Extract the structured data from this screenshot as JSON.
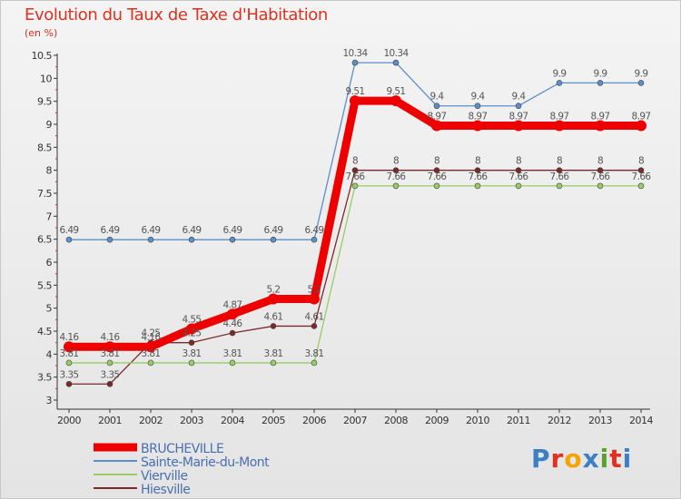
{
  "header": {
    "title": "Evolution du Taux de Taxe d'Habitation",
    "subtitle": "(en %)"
  },
  "logo": {
    "text": "Proxiti",
    "letter_colors": [
      "#3b7fc4",
      "#e0301e",
      "#f4a300",
      "#3b7fc4",
      "#5aa02c",
      "#e0301e",
      "#3b7fc4"
    ]
  },
  "chart_data": {
    "type": "line",
    "x": [
      2000,
      2001,
      2002,
      2003,
      2004,
      2005,
      2006,
      2007,
      2008,
      2009,
      2010,
      2011,
      2012,
      2013,
      2014
    ],
    "x_tick_labels": [
      "2000",
      "2001",
      "2002",
      "2003",
      "2004",
      "2005",
      "2006",
      "2007",
      "2008",
      "2009",
      "2010",
      "2011",
      "2012",
      "2013",
      "2014"
    ],
    "ylim": [
      3,
      10.5
    ],
    "y_tick_labels": [
      "3",
      "3.5",
      "4",
      "4.5",
      "5",
      "5.5",
      "6",
      "6.5",
      "7",
      "7.5",
      "8",
      "8.5",
      "9",
      "9.5",
      "10",
      "10.5"
    ],
    "grid": false,
    "legend_position": "bottom-left",
    "series": [
      {
        "name": "BRUCHEVILLE",
        "color": "#ee0000",
        "values": [
          4.16,
          4.16,
          4.16,
          4.55,
          4.87,
          5.2,
          5.2,
          9.51,
          9.51,
          8.97,
          8.97,
          8.97,
          8.97,
          8.97,
          8.97
        ],
        "labels": [
          "4.16",
          "4.16",
          "4.16",
          "4.55",
          "4.87",
          "5.2",
          "5.2",
          "9.51",
          "9.51",
          "8.97",
          "8.97",
          "8.97",
          "8.97",
          "8.97",
          "8.97"
        ]
      },
      {
        "name": "Sainte-Marie-du-Mont",
        "color": "#5b8fc7",
        "values": [
          6.49,
          6.49,
          6.49,
          6.49,
          6.49,
          6.49,
          6.49,
          10.34,
          10.34,
          9.4,
          9.4,
          9.4,
          9.9,
          9.9,
          9.9
        ],
        "labels": [
          "6.49",
          "6.49",
          "6.49",
          "6.49",
          "6.49",
          "6.49",
          "6.49",
          "10.34",
          "10.34",
          "9.4",
          "9.4",
          "9.4",
          "9.9",
          "9.9",
          "9.9"
        ]
      },
      {
        "name": "Vierville",
        "color": "#99cc66",
        "values": [
          3.81,
          3.81,
          3.81,
          3.81,
          3.81,
          3.81,
          3.81,
          7.66,
          7.66,
          7.66,
          7.66,
          7.66,
          7.66,
          7.66,
          7.66
        ],
        "labels": [
          "3.81",
          "3.81",
          "3.81",
          "3.81",
          "3.81",
          "3.81",
          "3.81",
          "7.66",
          "7.66",
          "7.66",
          "7.66",
          "7.66",
          "7.66",
          "7.66",
          "7.66"
        ]
      },
      {
        "name": "Hiesville",
        "color": "#7a2a2a",
        "values": [
          3.35,
          3.35,
          4.25,
          4.25,
          4.46,
          4.61,
          4.61,
          8,
          8,
          8,
          8,
          8,
          8,
          8,
          8
        ],
        "labels": [
          "3.35",
          "3.35",
          "4.25",
          "4.25",
          "4.46",
          "4.61",
          "4.61",
          "8",
          "8",
          "8",
          "8",
          "8",
          "8",
          "8",
          "8"
        ]
      }
    ]
  }
}
